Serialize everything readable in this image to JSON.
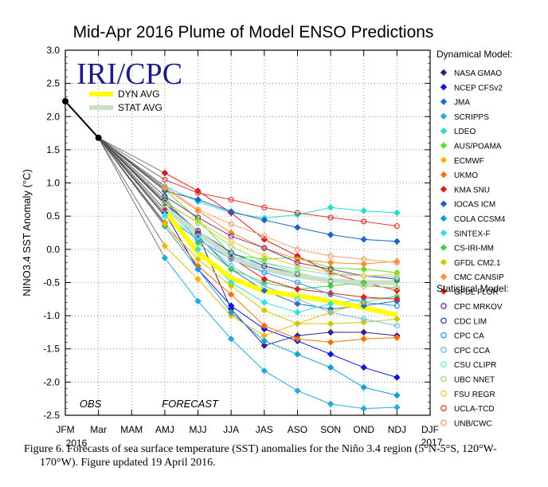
{
  "caption": {
    "line1": "Figure 6. Forecasts of sea surface temperature (SST) anomalies for the Niño 3.4 region (5°N-5°S, 120°W-",
    "line2": "170°W). Figure updated 19 April 2016."
  },
  "chart_data": {
    "type": "line",
    "title": "Mid-Apr 2016 Plume of Model ENSO Predictions",
    "ylabel": "NINO3.4 SST Anomaly (°C)",
    "ylim": [
      -2.5,
      3.0
    ],
    "ytick_values": [
      3.0,
      2.5,
      2.0,
      1.5,
      1.0,
      0.5,
      0.0,
      -0.5,
      -1.0,
      -1.5,
      -2.0,
      -2.5
    ],
    "ytick_labels": [
      "3.0",
      "2.5",
      "2.0",
      "1.5",
      "1.0",
      "0.5",
      "0.0",
      "-0.5",
      "-1.0",
      "-1.5",
      "-2.0",
      "-2.5"
    ],
    "categories": [
      "JFM",
      "Mar",
      "MAM",
      "AMJ",
      "MJJ",
      "JJA",
      "JAS",
      "ASO",
      "SON",
      "OND",
      "NDJ",
      "DJF"
    ],
    "year_start": "2016",
    "year_end": "2017",
    "obs_label": "OBS",
    "forecast_label": "FORECAST",
    "logo": "IRI/CPC",
    "grid": true,
    "observed": [
      2.23,
      1.68
    ],
    "avg_legend": [
      {
        "name": "DYN AVG",
        "color": "#ffff00"
      },
      {
        "name": "STAT AVG",
        "color": "#c8e0c8"
      }
    ],
    "dyn_avg": [
      0.58,
      -0.05,
      -0.43,
      -0.63,
      -0.7,
      -0.78,
      -0.88,
      -0.99
    ],
    "stat_avg": [
      0.62,
      0.25,
      -0.12,
      -0.3,
      -0.4,
      -0.47,
      -0.5,
      -0.5
    ],
    "dynamical_header": "Dynamical Model:",
    "statistical_header": "Statistical Model:",
    "dynamical": [
      {
        "name": "NASA GMAO",
        "color": "#3a1e8c",
        "values": [
          0.75,
          0.22,
          -0.9,
          -1.45,
          -1.3,
          -1.25,
          -1.25,
          -1.3
        ]
      },
      {
        "name": "NCEP CFSv2",
        "color": "#1414dc",
        "values": [
          0.55,
          -0.3,
          -0.85,
          -1.2,
          -1.38,
          -1.58,
          -1.78,
          -1.93
        ]
      },
      {
        "name": "JMA",
        "color": "#2070c8",
        "values": [
          0.7,
          0.2,
          -0.3,
          -0.62,
          -0.82,
          -0.9,
          -0.85,
          -0.78
        ]
      },
      {
        "name": "SCRIPPS",
        "color": "#2aa8e6",
        "values": [
          -0.13,
          -0.78,
          -1.35,
          -1.83,
          -2.13,
          -2.33,
          -2.4,
          -2.38
        ]
      },
      {
        "name": "LDEO",
        "color": "#20e0c8",
        "values": [
          0.95,
          0.72,
          0.55,
          0.47,
          0.52,
          0.63,
          0.58,
          0.55
        ]
      },
      {
        "name": "AUS/POAMA",
        "color": "#60e020",
        "values": [
          0.9,
          0.45,
          -0.08,
          -0.15,
          -0.12,
          -0.28,
          -0.3,
          -0.35
        ]
      },
      {
        "name": "ECMWF",
        "color": "#f0b800",
        "values": [
          0.05,
          -0.45,
          -1.0,
          -1.3,
          -1.12,
          -0.95,
          -0.8,
          -0.7
        ]
      },
      {
        "name": "UKMO",
        "color": "#ff7000",
        "values": [
          0.4,
          -0.25,
          -0.68,
          -1.15,
          -1.35,
          -1.4,
          -1.35,
          -1.33
        ]
      },
      {
        "name": "KMA SNU",
        "color": "#e01818",
        "values": [
          1.15,
          0.88,
          0.55,
          0.15,
          -0.1,
          -0.35,
          -0.5,
          -0.62
        ]
      },
      {
        "name": "IOCAS ICM",
        "color": "#1c64c8",
        "values": [
          0.88,
          0.75,
          0.57,
          0.44,
          0.33,
          0.22,
          0.15,
          0.12
        ]
      },
      {
        "name": "COLA CCSM4",
        "color": "#10a0d8",
        "values": [
          0.35,
          -0.3,
          -0.95,
          -1.38,
          -1.58,
          -1.78,
          -2.08,
          -2.2
        ]
      },
      {
        "name": "SINTEX-F",
        "color": "#30e0e0",
        "values": [
          0.52,
          0.0,
          -0.5,
          -0.8,
          -0.95,
          -0.82,
          -0.75,
          -0.72
        ]
      },
      {
        "name": "CS-IRI-MM",
        "color": "#40d040",
        "values": [
          0.8,
          0.1,
          -0.3,
          -0.5,
          -0.6,
          -0.55,
          -0.5,
          -0.48
        ]
      },
      {
        "name": "GFDL CM2.1",
        "color": "#d0c800",
        "values": [
          0.38,
          -0.15,
          -0.55,
          -0.92,
          -1.12,
          -1.12,
          -1.1,
          -1.05
        ]
      },
      {
        "name": "CMC CANSIP",
        "color": "#ff8c28",
        "values": [
          0.92,
          0.58,
          0.25,
          0.02,
          -0.15,
          -0.2,
          -0.22,
          -0.18
        ]
      },
      {
        "name": "GFDL FLOR",
        "color": "#e02020",
        "values": [
          0.6,
          0.25,
          -0.12,
          -0.45,
          -0.6,
          -0.66,
          -0.72,
          -0.75
        ]
      }
    ],
    "statistical": [
      {
        "name": "CPC MRKOV",
        "color": "#7030b0",
        "values": [
          0.8,
          0.48,
          0.2,
          0.02,
          -0.2,
          -0.3,
          -0.4,
          -0.45
        ]
      },
      {
        "name": "CDC LIM",
        "color": "#3030d0",
        "values": [
          0.7,
          0.28,
          -0.05,
          -0.25,
          -0.37,
          -0.48,
          -0.55,
          -0.58
        ]
      },
      {
        "name": "CPC CA",
        "color": "#3090e0",
        "values": [
          0.5,
          0.15,
          -0.15,
          -0.35,
          -0.5,
          -0.68,
          -0.8,
          -0.85
        ]
      },
      {
        "name": "CPC CCA",
        "color": "#60c0f0",
        "values": [
          0.6,
          0.18,
          -0.25,
          -0.55,
          -0.75,
          -0.95,
          -1.05,
          -1.15
        ]
      },
      {
        "name": "CSU CLIPR",
        "color": "#60e8d8",
        "values": [
          0.5,
          0.2,
          -0.1,
          -0.2,
          -0.3,
          -0.38,
          -0.4,
          -0.42
        ]
      },
      {
        "name": "UBC NNET",
        "color": "#a0e060",
        "values": [
          0.72,
          0.4,
          0.05,
          -0.2,
          -0.35,
          -0.47,
          -0.55,
          -0.58
        ]
      },
      {
        "name": "FSU REGR",
        "color": "#f0c830",
        "values": [
          0.68,
          0.42,
          0.12,
          -0.1,
          -0.25,
          -0.35,
          -0.4,
          -0.38
        ]
      },
      {
        "name": "UCLA-TCD",
        "color": "#e03830",
        "values": [
          1.05,
          0.85,
          0.75,
          0.63,
          0.55,
          0.48,
          0.42,
          0.35
        ]
      },
      {
        "name": "UNB/CWC",
        "color": "#f0a070",
        "values": [
          0.95,
          0.6,
          0.38,
          0.2,
          0.0,
          -0.1,
          -0.15,
          -0.2
        ]
      }
    ]
  }
}
